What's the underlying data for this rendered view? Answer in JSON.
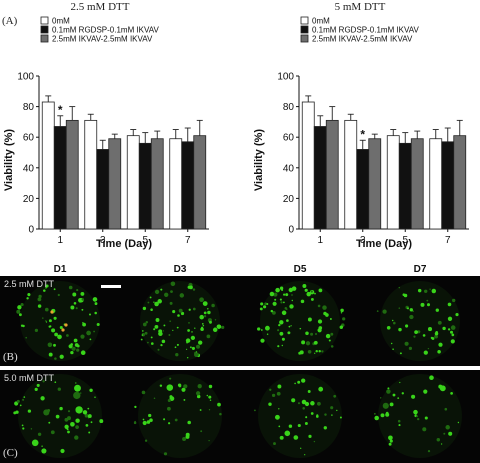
{
  "panel_a_label": "(A)",
  "panel_b_label": "(B)",
  "panel_c_label": "(C)",
  "chart_data": [
    {
      "type": "bar",
      "title": "2.5 mM DTT",
      "xlabel": "Time (Day)",
      "ylabel": "Viability (%)",
      "ylim": [
        0,
        100
      ],
      "yticks": [
        "0",
        "20",
        "40",
        "60",
        "80",
        "100"
      ],
      "categories": [
        "1",
        "3",
        "5",
        "7"
      ],
      "legend_position": "top-left",
      "series": [
        {
          "name": "0mM",
          "color": "#ffffff",
          "values": [
            83,
            71,
            61,
            59
          ],
          "errors": [
            4,
            4,
            4,
            6
          ]
        },
        {
          "name": "0.1mM RGDSP-0.1mM IKVAV",
          "color": "#111111",
          "values": [
            67,
            52,
            56,
            57
          ],
          "errors": [
            7,
            6,
            7,
            9
          ]
        },
        {
          "name": "2.5mM IKVAV-2.5mM IKVAV",
          "color": "#6e6e6e",
          "values": [
            71,
            59,
            59,
            61
          ],
          "errors": [
            9,
            3,
            5,
            10
          ]
        }
      ],
      "annotations": [
        {
          "text": "*",
          "category": "1",
          "series": 1
        }
      ]
    },
    {
      "type": "bar",
      "title": "5 mM DTT",
      "xlabel": "Time (Day)",
      "ylabel": "Viability (%)",
      "ylim": [
        0,
        100
      ],
      "yticks": [
        "0",
        "20",
        "40",
        "60",
        "80",
        "100"
      ],
      "categories": [
        "1",
        "3",
        "5",
        "7"
      ],
      "legend_position": "top-left",
      "series": [
        {
          "name": "0mM",
          "color": "#ffffff",
          "values": [
            83,
            71,
            61,
            59
          ],
          "errors": [
            4,
            4,
            4,
            6
          ]
        },
        {
          "name": "0.1mM RGDSP-0.1mM IKVAV",
          "color": "#111111",
          "values": [
            67,
            52,
            56,
            57
          ],
          "errors": [
            7,
            6,
            7,
            9
          ]
        },
        {
          "name": "2.5mM IKVAV-2.5mM IKVAV",
          "color": "#6e6e6e",
          "values": [
            71,
            59,
            59,
            61
          ],
          "errors": [
            9,
            3,
            5,
            10
          ]
        }
      ],
      "annotations": [
        {
          "text": "*",
          "category": "3",
          "series": 1
        }
      ]
    }
  ],
  "images": {
    "day_labels": [
      "D1",
      "D3",
      "D5",
      "D7"
    ],
    "rows": [
      {
        "label": "2.5 mM DTT",
        "panel": "(B)"
      },
      {
        "label": "5.0 mM DTT",
        "panel": "(C)"
      }
    ],
    "background_color": "#050505",
    "cell_color": "#39d41a",
    "dead_cell_color": "#e8a030"
  }
}
